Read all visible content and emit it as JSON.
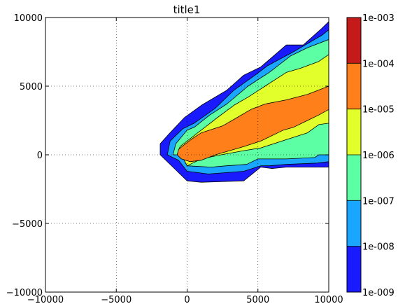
{
  "chart_data": {
    "type": "contour",
    "title": "title1",
    "xlabel": "",
    "ylabel": "",
    "xlim": [
      -10000,
      10000
    ],
    "ylim": [
      -10000,
      10000
    ],
    "x_ticks": [
      -10000,
      -5000,
      0,
      5000,
      10000
    ],
    "y_ticks": [
      -10000,
      -5000,
      0,
      5000,
      10000
    ],
    "x_tick_labels": [
      "−10000",
      "−5000",
      "0",
      "5000",
      "10000"
    ],
    "y_tick_labels": [
      "−10000",
      "−5000",
      "0",
      "5000",
      "10000"
    ],
    "grid": true,
    "colorbar": {
      "scale": "log",
      "levels": [
        "1e-009",
        "1e-008",
        "1e-007",
        "1e-006",
        "1e-005",
        "1e-004",
        "1e-003"
      ],
      "band_colors": [
        "#1a1aff",
        "#1aa6ff",
        "#5cffa3",
        "#e3ff2b",
        "#ff7f1a",
        "#c41a1a"
      ]
    },
    "contour_bands": [
      {
        "range": [
          "1e-009",
          "1e-008"
        ],
        "color": "#1a1aff",
        "points": [
          [
            -1900,
            0
          ],
          [
            -1900,
            800
          ],
          [
            -1300,
            1500
          ],
          [
            -200,
            2700
          ],
          [
            1000,
            3600
          ],
          [
            2800,
            4700
          ],
          [
            4000,
            5800
          ],
          [
            5200,
            6400
          ],
          [
            7000,
            8000
          ],
          [
            8200,
            8000
          ],
          [
            9500,
            9200
          ],
          [
            10000,
            9700
          ],
          [
            10000,
            -900
          ],
          [
            7000,
            -900
          ],
          [
            6000,
            -1000
          ],
          [
            5200,
            -900
          ],
          [
            4000,
            -1900
          ],
          [
            1000,
            -2000
          ],
          [
            0,
            -1900
          ]
        ]
      },
      {
        "range": [
          "1e-008",
          "1e-007"
        ],
        "color": "#1aa6ff",
        "points": [
          [
            -1400,
            0
          ],
          [
            -1200,
            1000
          ],
          [
            -300,
            1900
          ],
          [
            500,
            2300
          ],
          [
            2000,
            3400
          ],
          [
            3300,
            4700
          ],
          [
            4800,
            5800
          ],
          [
            5700,
            6500
          ],
          [
            7500,
            7500
          ],
          [
            9500,
            8700
          ],
          [
            10000,
            9100
          ],
          [
            10000,
            -500
          ],
          [
            9200,
            -600
          ],
          [
            7000,
            -700
          ],
          [
            5800,
            -800
          ],
          [
            5200,
            -800
          ],
          [
            4000,
            -1200
          ],
          [
            1500,
            -1400
          ],
          [
            0,
            -1200
          ],
          [
            -600,
            -400
          ]
        ]
      },
      {
        "range": [
          "1e-007",
          "1e-006"
        ],
        "color": "#5cffa3",
        "points": [
          [
            -1000,
            0
          ],
          [
            -800,
            800
          ],
          [
            0,
            1800
          ],
          [
            500,
            2000
          ],
          [
            1600,
            2900
          ],
          [
            2800,
            3700
          ],
          [
            4300,
            5000
          ],
          [
            5800,
            6000
          ],
          [
            7300,
            7200
          ],
          [
            8500,
            7800
          ],
          [
            10000,
            8400
          ],
          [
            10000,
            0
          ],
          [
            9300,
            0
          ],
          [
            9000,
            -200
          ],
          [
            7000,
            -300
          ],
          [
            5000,
            -300
          ],
          [
            4200,
            -700
          ],
          [
            2800,
            -800
          ],
          [
            1700,
            -900
          ],
          [
            0,
            -800
          ],
          [
            -400,
            0
          ]
        ]
      },
      {
        "range": [
          "1e-006",
          "1e-005"
        ],
        "color": "#e3ff2b",
        "points": [
          [
            -700,
            0
          ],
          [
            -500,
            600
          ],
          [
            500,
            1400
          ],
          [
            1500,
            2200
          ],
          [
            2000,
            2600
          ],
          [
            3300,
            3600
          ],
          [
            4300,
            4200
          ],
          [
            5500,
            5000
          ],
          [
            7000,
            6000
          ],
          [
            8000,
            6300
          ],
          [
            9300,
            6800
          ],
          [
            10000,
            7300
          ],
          [
            10000,
            2300
          ],
          [
            9300,
            2200
          ],
          [
            8500,
            1600
          ],
          [
            7000,
            1100
          ],
          [
            5200,
            500
          ],
          [
            4000,
            300
          ],
          [
            2400,
            0
          ],
          [
            1000,
            -300
          ],
          [
            0,
            -800
          ],
          [
            -400,
            0
          ]
        ]
      },
      {
        "range": [
          "1e-005",
          "1e-004"
        ],
        "color": "#ff7f1a",
        "points": [
          [
            -700,
            0
          ],
          [
            -600,
            400
          ],
          [
            0,
            900
          ],
          [
            400,
            1200
          ],
          [
            1000,
            1600
          ],
          [
            2500,
            2100
          ],
          [
            3500,
            2700
          ],
          [
            4500,
            3300
          ],
          [
            5500,
            3700
          ],
          [
            7000,
            4000
          ],
          [
            8500,
            4400
          ],
          [
            10000,
            5000
          ],
          [
            10000,
            3300
          ],
          [
            9300,
            2900
          ],
          [
            8500,
            2500
          ],
          [
            7500,
            2000
          ],
          [
            6800,
            1800
          ],
          [
            5200,
            1000
          ],
          [
            4000,
            600
          ],
          [
            3000,
            300
          ],
          [
            2000,
            0
          ],
          [
            1000,
            -400
          ],
          [
            200,
            -500
          ],
          [
            -400,
            -300
          ]
        ]
      }
    ]
  }
}
